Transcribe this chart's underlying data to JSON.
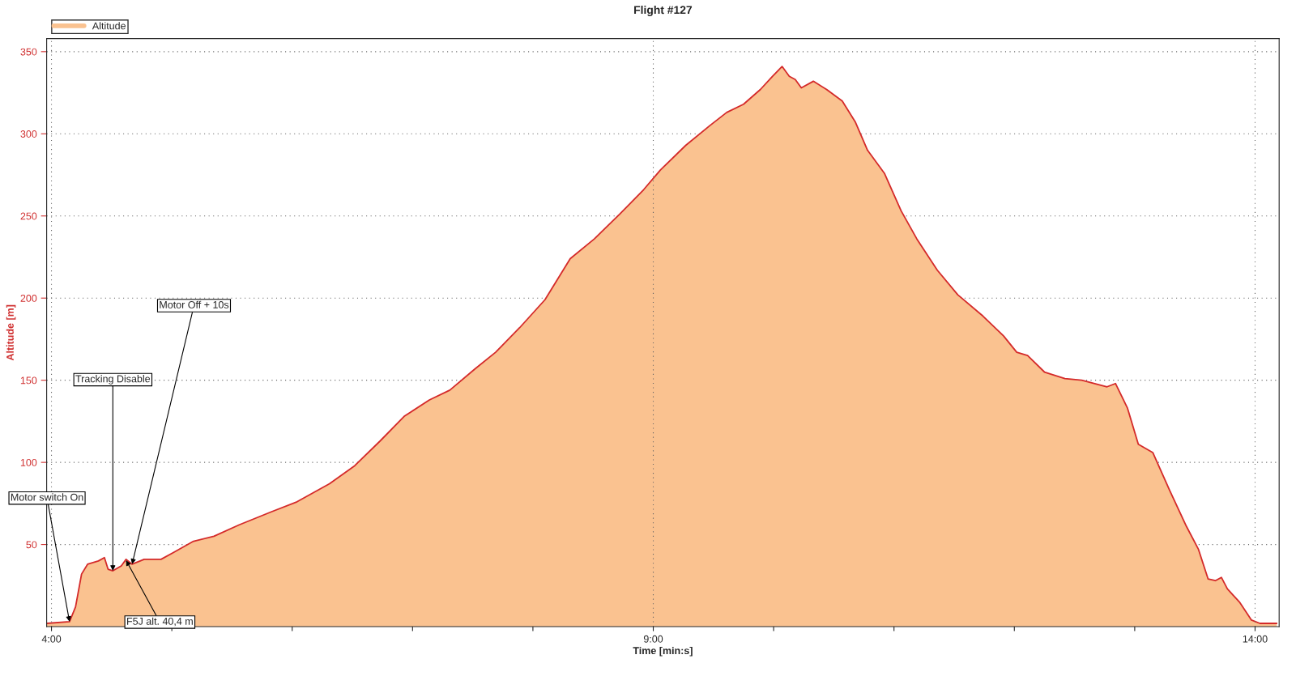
{
  "chart_data": {
    "type": "area",
    "title": "Flight #127",
    "xlabel": "Time [min:s]",
    "ylabel": "Altitude [m]",
    "x": [
      3.96,
      4.15,
      4.2,
      4.25,
      4.3,
      4.39,
      4.44,
      4.47,
      4.51,
      4.58,
      4.62,
      4.67,
      4.77,
      4.91,
      5.01,
      5.18,
      5.35,
      5.56,
      5.83,
      6.04,
      6.31,
      6.52,
      6.73,
      6.93,
      7.14,
      7.31,
      7.52,
      7.69,
      7.89,
      8.1,
      8.31,
      8.51,
      8.72,
      8.92,
      9.06,
      9.27,
      9.47,
      9.61,
      9.75,
      9.89,
      9.99,
      10.07,
      10.13,
      10.18,
      10.23,
      10.33,
      10.44,
      10.57,
      10.68,
      10.78,
      10.92,
      11.06,
      11.19,
      11.36,
      11.53,
      11.74,
      11.91,
      12.02,
      12.11,
      12.25,
      12.42,
      12.56,
      12.77,
      12.84,
      12.94,
      13.03,
      13.15,
      13.29,
      13.43,
      13.53,
      13.61,
      13.67,
      13.72,
      13.77,
      13.87,
      13.97,
      14.04,
      14.18
    ],
    "series": [
      {
        "name": "Altitude",
        "color": "#fac290",
        "values": [
          2,
          3,
          12,
          32,
          38,
          40,
          42,
          35,
          34,
          37,
          41,
          38,
          41,
          41,
          45,
          52,
          55,
          62,
          70,
          76,
          87,
          98,
          113,
          128,
          138,
          144,
          157,
          167,
          182,
          199,
          224,
          236,
          251,
          266,
          278,
          293,
          305,
          313,
          318,
          327,
          335,
          341,
          335,
          333,
          328,
          332,
          327,
          320,
          307,
          290,
          276,
          253,
          236,
          217,
          202,
          189,
          177,
          167,
          165,
          155,
          151,
          150,
          146,
          148,
          133,
          111,
          106,
          83,
          61,
          47,
          29,
          28,
          30,
          23,
          15,
          4,
          2,
          2
        ]
      }
    ],
    "xlim": [
      3.96,
      14.2
    ],
    "ylim": [
      0,
      358
    ],
    "xticks": [
      {
        "value": 4,
        "label": "4:00"
      },
      {
        "value": 5,
        "label": null
      },
      {
        "value": 6,
        "label": null
      },
      {
        "value": 7,
        "label": null
      },
      {
        "value": 8,
        "label": null
      },
      {
        "value": 9,
        "label": "9:00"
      },
      {
        "value": 10,
        "label": null
      },
      {
        "value": 11,
        "label": null
      },
      {
        "value": 12,
        "label": null
      },
      {
        "value": 13,
        "label": null
      },
      {
        "value": 14,
        "label": "14:00"
      }
    ],
    "yticks": [
      50,
      100,
      150,
      200,
      250,
      300,
      350
    ],
    "grid": true,
    "legend": "top left",
    "annotations": [
      {
        "text": "Motor switch On",
        "x": 4.15,
        "y": 3
      },
      {
        "text": "Tracking Disable",
        "x": 4.51,
        "y": 34
      },
      {
        "text": "Motor Off + 10s",
        "x": 4.67,
        "y": 38
      },
      {
        "text": "F5J alt. 40,4 m",
        "x": 4.62,
        "y": 40.4
      }
    ]
  }
}
